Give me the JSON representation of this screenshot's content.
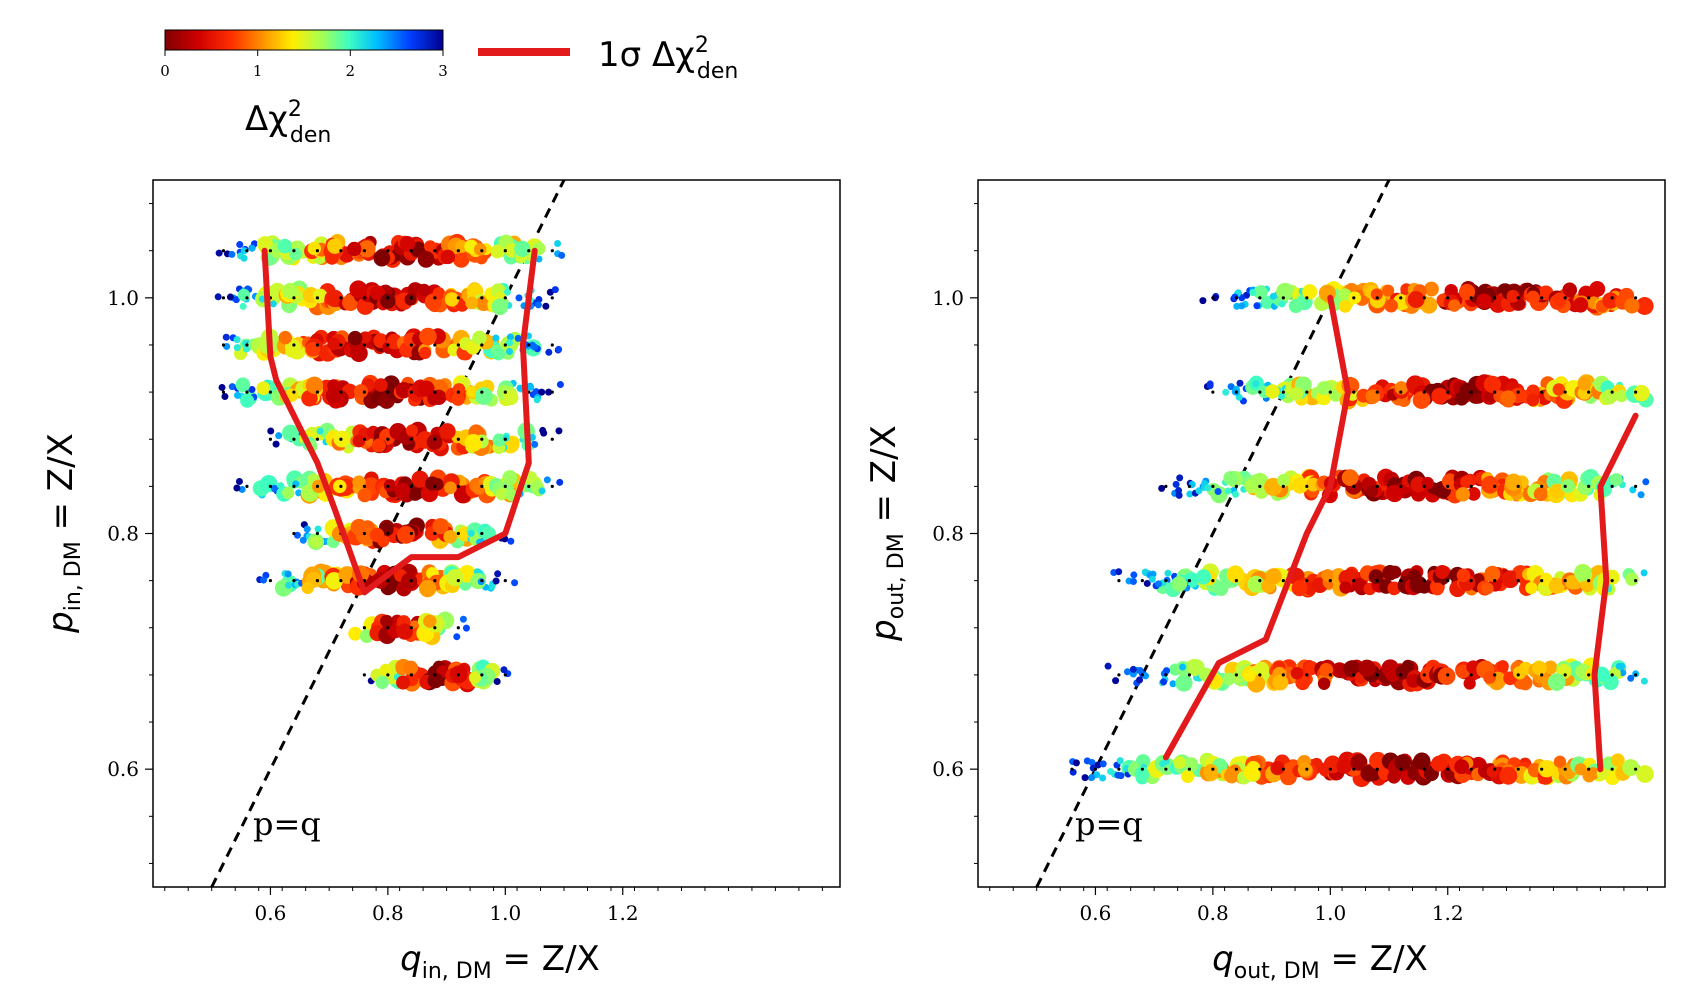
{
  "colorbar": {
    "label": "Δχ²den",
    "label_main": "Δχ",
    "label_sup": "2",
    "label_sub": "den",
    "ticks": [
      "0",
      "1",
      "2",
      "3"
    ],
    "range": [
      0,
      3
    ],
    "colormap": "jet_r"
  },
  "legend": {
    "line_label_main": "1σ Δχ",
    "line_label_sup": "2",
    "line_label_sub": "den",
    "line_color": "#e31a1c"
  },
  "chart_data": [
    {
      "type": "scatter",
      "panel": "left",
      "xlabel_main": "q",
      "xlabel_sub": "in, DM",
      "xlabel_rest": " = Z/X",
      "ylabel_main": "p",
      "ylabel_sub": "in, DM",
      "ylabel_rest": " = Z/X",
      "xlim": [
        0.4,
        1.57
      ],
      "ylim": [
        0.5,
        1.1
      ],
      "xticks": [
        "0.6",
        "0.8",
        "1.0",
        "1.2"
      ],
      "xtick_values": [
        0.6,
        0.8,
        1.0,
        1.2
      ],
      "yticks": [
        "0.6",
        "0.8",
        "1.0"
      ],
      "ytick_values": [
        0.6,
        0.8,
        1.0
      ],
      "diagonal_label": "p=q",
      "grid": false,
      "rows": [
        {
          "p": 1.04,
          "q_start": 0.52,
          "q_end": 1.08,
          "dq": 0.04,
          "center_q": 0.82
        },
        {
          "p": 1.0,
          "q_start": 0.52,
          "q_end": 1.08,
          "dq": 0.04,
          "center_q": 0.8
        },
        {
          "p": 0.96,
          "q_start": 0.52,
          "q_end": 1.08,
          "dq": 0.04,
          "center_q": 0.78
        },
        {
          "p": 0.92,
          "q_start": 0.52,
          "q_end": 1.08,
          "dq": 0.04,
          "center_q": 0.8
        },
        {
          "p": 0.88,
          "q_start": 0.6,
          "q_end": 1.08,
          "dq": 0.04,
          "center_q": 0.84
        },
        {
          "p": 0.84,
          "q_start": 0.56,
          "q_end": 1.08,
          "dq": 0.04,
          "center_q": 0.84
        },
        {
          "p": 0.8,
          "q_start": 0.64,
          "q_end": 1.0,
          "dq": 0.04,
          "center_q": 0.82
        },
        {
          "p": 0.76,
          "q_start": 0.6,
          "q_end": 1.0,
          "dq": 0.04,
          "center_q": 0.8
        },
        {
          "p": 0.72,
          "q_start": 0.76,
          "q_end": 0.92,
          "dq": 0.04,
          "center_q": 0.82
        },
        {
          "p": 0.68,
          "q_start": 0.76,
          "q_end": 1.0,
          "dq": 0.04,
          "center_q": 0.88
        }
      ],
      "contour_1sigma": [
        [
          0.59,
          1.04
        ],
        [
          0.6,
          0.95
        ],
        [
          0.61,
          0.93
        ],
        [
          0.68,
          0.86
        ],
        [
          0.71,
          0.82
        ],
        [
          0.76,
          0.75
        ],
        [
          0.84,
          0.78
        ],
        [
          0.92,
          0.78
        ],
        [
          1.0,
          0.8
        ],
        [
          1.04,
          0.86
        ],
        [
          1.03,
          0.96
        ],
        [
          1.05,
          1.04
        ]
      ]
    },
    {
      "type": "scatter",
      "panel": "right",
      "xlabel_main": "q",
      "xlabel_sub": "out, DM",
      "xlabel_rest": " = Z/X",
      "ylabel_main": "p",
      "ylabel_sub": "out, DM",
      "ylabel_rest": " = Z/X",
      "xlim": [
        0.4,
        1.57
      ],
      "ylim": [
        0.5,
        1.1
      ],
      "xticks": [
        "0.6",
        "0.8",
        "1.0",
        "1.2"
      ],
      "xtick_values": [
        0.6,
        0.8,
        1.0,
        1.2
      ],
      "yticks": [
        "0.6",
        "0.8",
        "1.0"
      ],
      "ytick_values": [
        0.6,
        0.8,
        1.0
      ],
      "diagonal_label": "p=q",
      "grid": false,
      "rows": [
        {
          "p": 1.0,
          "q_start": 0.8,
          "q_end": 1.52,
          "dq": 0.04,
          "center_q": 1.3
        },
        {
          "p": 0.92,
          "q_start": 0.8,
          "q_end": 1.52,
          "dq": 0.04,
          "center_q": 1.22
        },
        {
          "p": 0.84,
          "q_start": 0.72,
          "q_end": 1.52,
          "dq": 0.04,
          "center_q": 1.14
        },
        {
          "p": 0.76,
          "q_start": 0.64,
          "q_end": 1.52,
          "dq": 0.04,
          "center_q": 1.14
        },
        {
          "p": 0.68,
          "q_start": 0.64,
          "q_end": 1.52,
          "dq": 0.04,
          "center_q": 1.12
        },
        {
          "p": 0.6,
          "q_start": 0.56,
          "q_end": 1.52,
          "dq": 0.04,
          "center_q": 1.12
        }
      ],
      "contour_1sigma_left": [
        [
          0.72,
          0.61
        ],
        [
          0.81,
          0.69
        ],
        [
          0.89,
          0.71
        ],
        [
          0.96,
          0.8
        ],
        [
          1.0,
          0.84
        ],
        [
          1.03,
          0.92
        ],
        [
          1.0,
          1.0
        ]
      ],
      "contour_1sigma_right": [
        [
          1.46,
          0.6
        ],
        [
          1.45,
          0.68
        ],
        [
          1.47,
          0.76
        ],
        [
          1.46,
          0.84
        ],
        [
          1.52,
          0.9
        ]
      ]
    }
  ]
}
